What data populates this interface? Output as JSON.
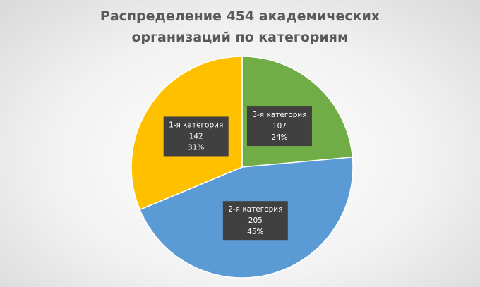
{
  "chart_data": {
    "type": "pie",
    "title": "Распределение 454 академических организаций по категориям",
    "categories": [
      "3-я категория",
      "2-я категория",
      "1-я категория"
    ],
    "values": [
      107,
      205,
      142
    ],
    "percent_labels": [
      "24%",
      "45%",
      "31%"
    ],
    "colors": [
      "#70ad47",
      "#5b9bd5",
      "#ffc000"
    ]
  }
}
